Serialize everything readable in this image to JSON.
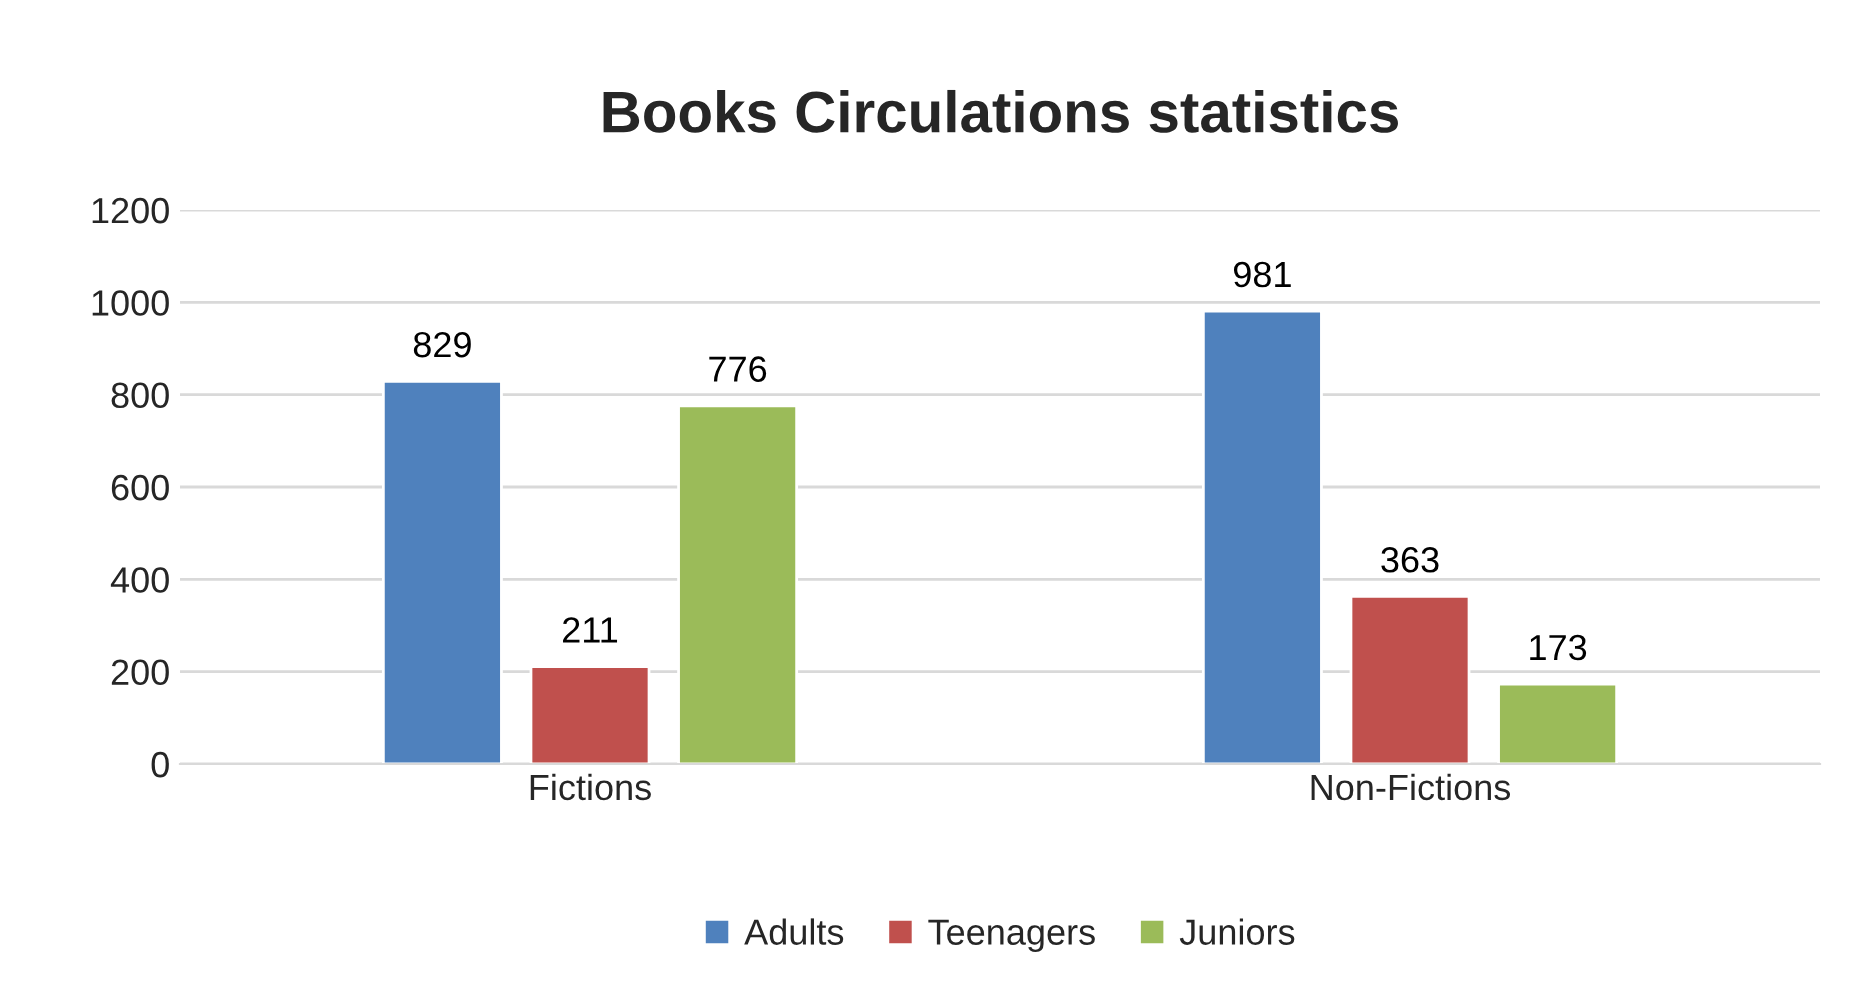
{
  "chart_data": {
    "type": "bar",
    "title": "Books Circulations statistics",
    "categories": [
      "Fictions",
      "Non-Fictions"
    ],
    "series": [
      {
        "name": "Adults",
        "color": "#4f81bd",
        "values": [
          829,
          981
        ]
      },
      {
        "name": "Teenagers",
        "color": "#c0504d",
        "values": [
          211,
          363
        ]
      },
      {
        "name": "Juniors",
        "color": "#9bbb59",
        "values": [
          776,
          173
        ]
      }
    ],
    "ylim": [
      0,
      1200
    ],
    "yticks": [
      0,
      200,
      400,
      600,
      800,
      1000,
      1200
    ],
    "grid": "y",
    "legend": "bottom",
    "data_labels": true
  }
}
